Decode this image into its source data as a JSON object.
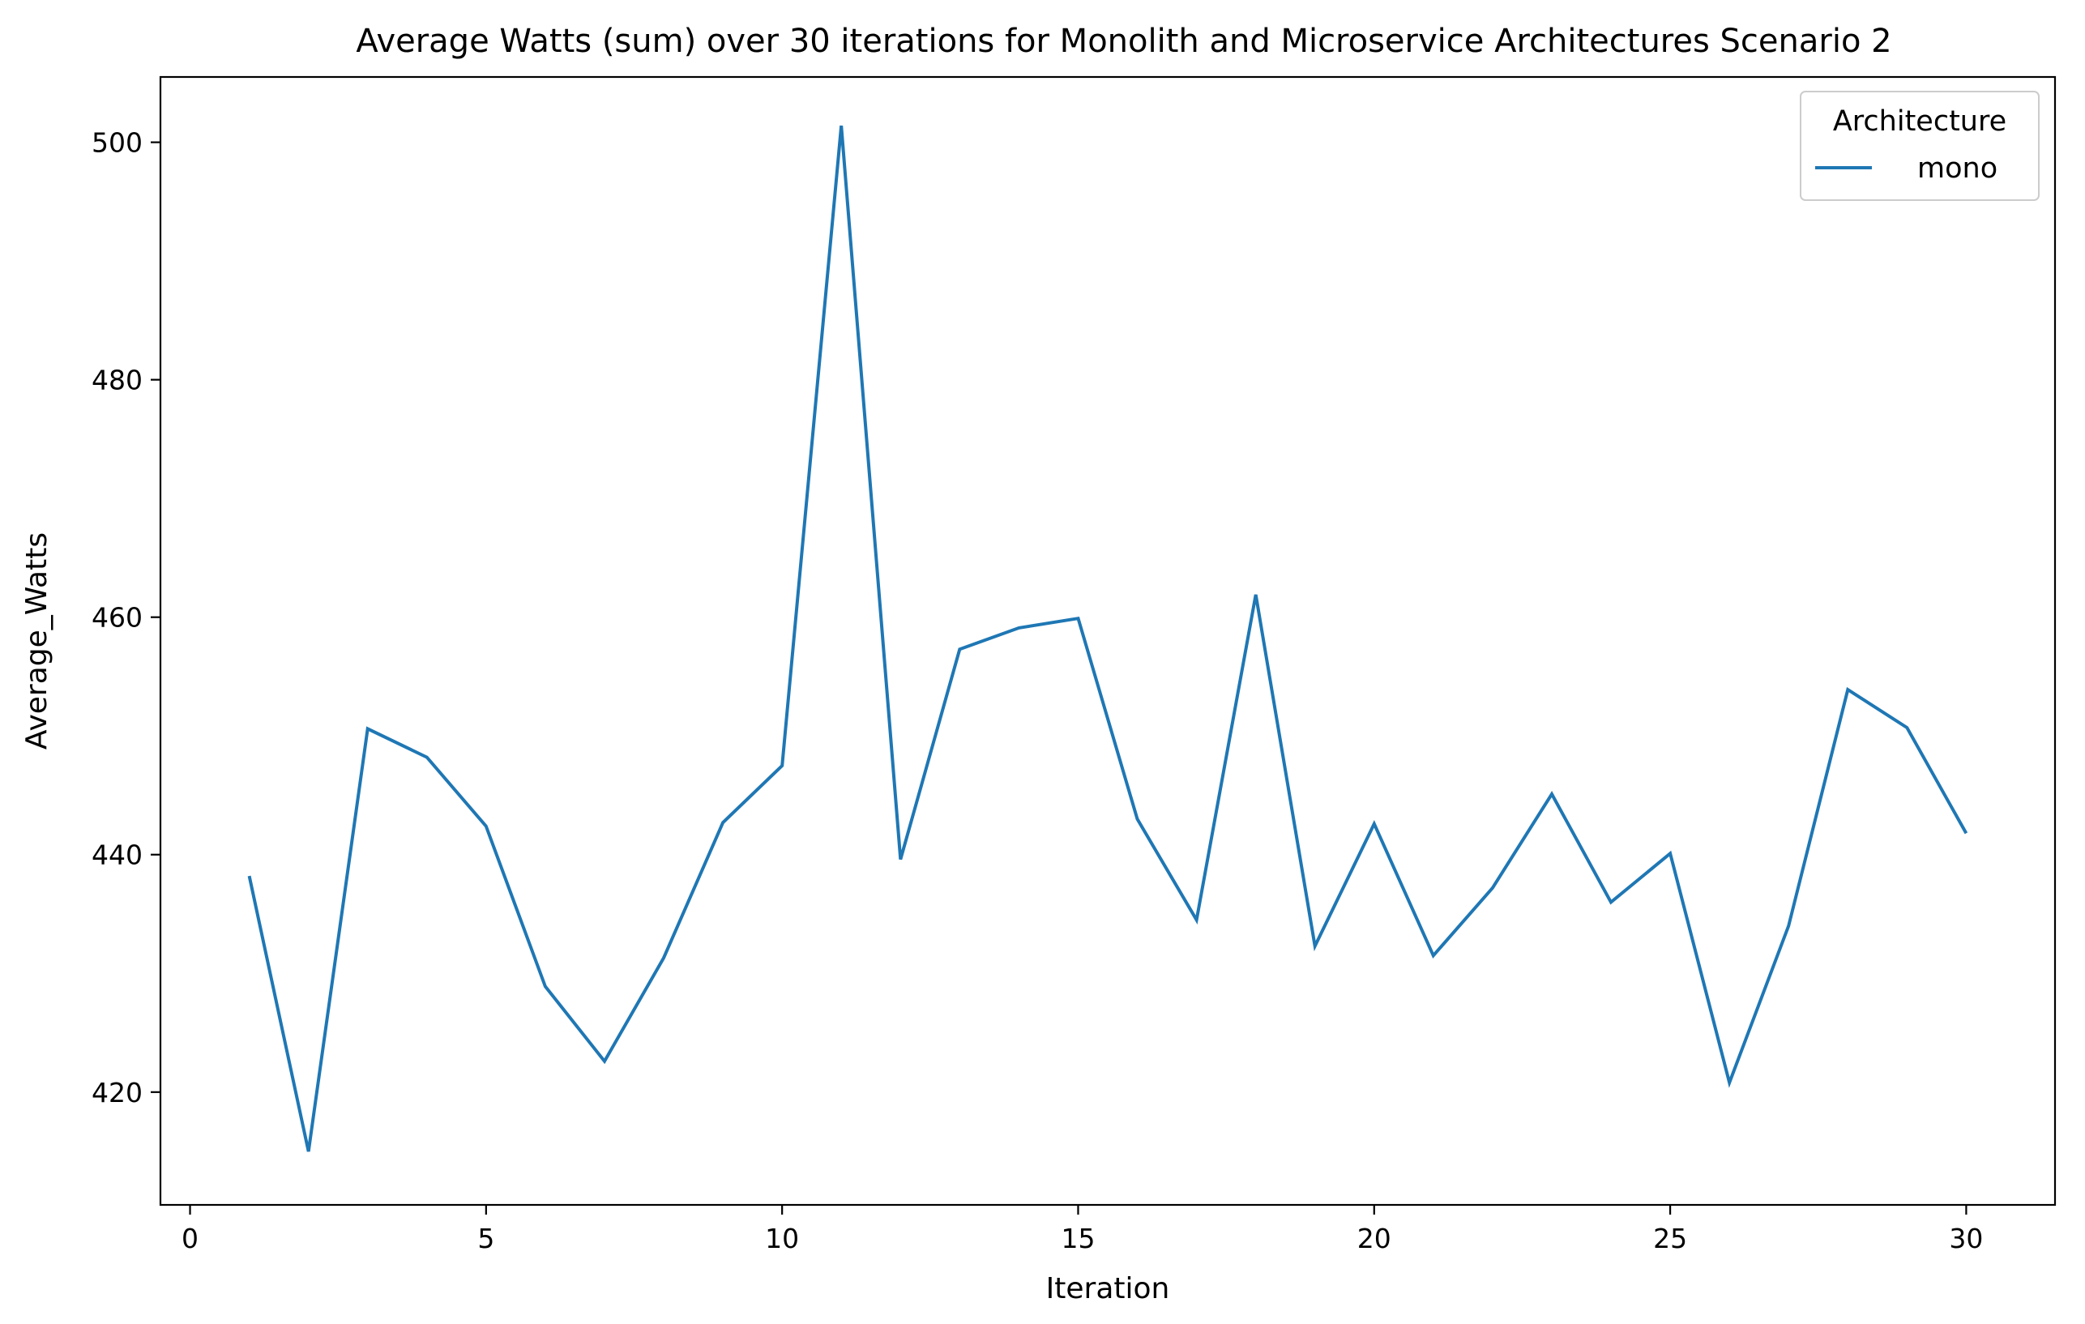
{
  "chart_data": {
    "type": "line",
    "title": "Average Watts (sum) over 30 iterations for Monolith and Microservice Architectures Scenario 2",
    "xlabel": "Iteration",
    "ylabel": "Average_Watts",
    "xlim": [
      -0.5,
      31.5
    ],
    "ylim": [
      410.5,
      505.5
    ],
    "xticks": [
      0,
      5,
      10,
      15,
      20,
      25,
      30
    ],
    "yticks": [
      420,
      440,
      460,
      480,
      500
    ],
    "grid": false,
    "legend": {
      "title": "Architecture",
      "position": "upper right"
    },
    "series": [
      {
        "name": "mono",
        "color": "#1f77b4",
        "x": [
          1,
          2,
          3,
          4,
          5,
          6,
          7,
          8,
          9,
          10,
          11,
          12,
          13,
          14,
          15,
          16,
          17,
          18,
          19,
          20,
          21,
          22,
          23,
          24,
          25,
          26,
          27,
          28,
          29,
          30
        ],
        "values": [
          438.2,
          415.0,
          450.6,
          448.2,
          442.4,
          428.9,
          422.6,
          431.3,
          442.7,
          447.5,
          501.4,
          439.6,
          457.3,
          459.1,
          459.9,
          443.0,
          434.5,
          461.9,
          432.3,
          442.6,
          431.5,
          437.2,
          445.1,
          436.0,
          440.1,
          420.8,
          434.0,
          453.9,
          450.7,
          441.8
        ]
      }
    ]
  }
}
